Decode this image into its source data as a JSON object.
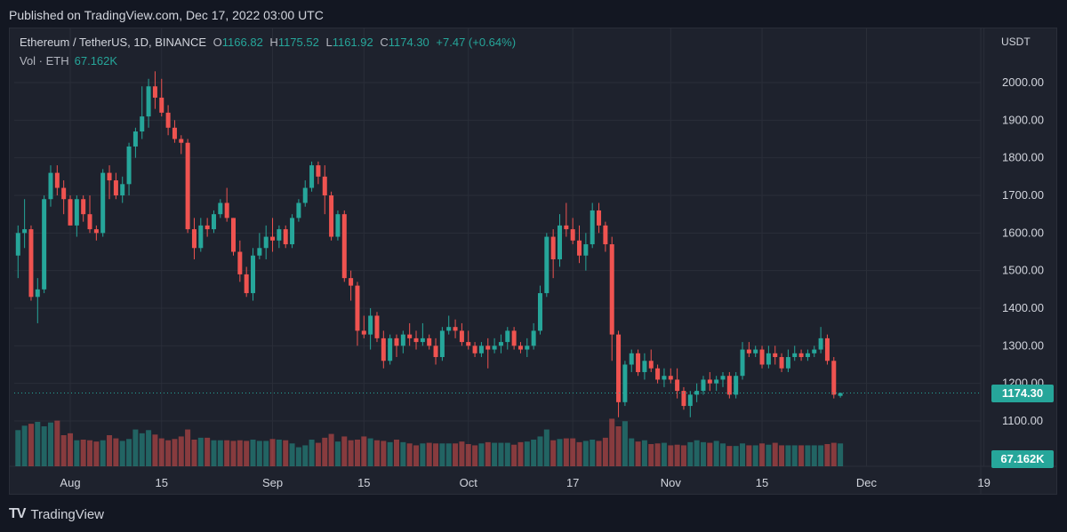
{
  "caption": "Published on TradingView.com, Dec 17, 2022 03:00 UTC",
  "brand": {
    "name": "TradingView",
    "logo_icon": "tradingview-logo-icon"
  },
  "legend": {
    "symbol": "Ethereum / TetherUS, 1D, BINANCE",
    "o_label": "O",
    "o": "1166.82",
    "h_label": "H",
    "h": "1175.52",
    "l_label": "L",
    "l": "1161.92",
    "c_label": "C",
    "c": "1174.30",
    "change": "+7.47 (+0.64%)",
    "vol_label": "Vol · ETH",
    "vol_value": "67.162K"
  },
  "price_axis": {
    "currency": "USDT"
  },
  "last_price_badge": "1174.30",
  "last_volume_badge": "67.162K",
  "colors": {
    "up": "#26a69a",
    "down": "#ef5350",
    "background": "#1e222d",
    "grid": "#2a2e39"
  },
  "chart_data": {
    "type": "candlestick",
    "y_ticks": [
      "1100.00",
      "1200.00",
      "1300.00",
      "1400.00",
      "1500.00",
      "1600.00",
      "1700.00",
      "1800.00",
      "1900.00",
      "2000.00"
    ],
    "ylim": [
      1010,
      2090
    ],
    "x_ticks": [
      {
        "label": "Aug",
        "day": 0
      },
      {
        "label": "15",
        "day": 14
      },
      {
        "label": "Sep",
        "day": 31
      },
      {
        "label": "15",
        "day": 45
      },
      {
        "label": "Oct",
        "day": 61
      },
      {
        "label": "17",
        "day": 77
      },
      {
        "label": "Nov",
        "day": 92
      },
      {
        "label": "15",
        "day": 106
      },
      {
        "label": "Dec",
        "day": 122
      },
      {
        "label": "19",
        "day": 140
      }
    ],
    "start_day": -9,
    "candles": [
      [
        1570,
        1610,
        1520,
        1540
      ],
      [
        1540,
        1620,
        1480,
        1600
      ],
      [
        1600,
        1690,
        1560,
        1610
      ],
      [
        1610,
        1620,
        1420,
        1430
      ],
      [
        1430,
        1480,
        1360,
        1450
      ],
      [
        1450,
        1700,
        1440,
        1690
      ],
      [
        1690,
        1780,
        1670,
        1760
      ],
      [
        1760,
        1780,
        1700,
        1720
      ],
      [
        1720,
        1740,
        1650,
        1690
      ],
      [
        1690,
        1700,
        1620,
        1620
      ],
      [
        1620,
        1700,
        1590,
        1690
      ],
      [
        1690,
        1700,
        1630,
        1650
      ],
      [
        1650,
        1700,
        1600,
        1610
      ],
      [
        1610,
        1620,
        1580,
        1600
      ],
      [
        1600,
        1770,
        1590,
        1760
      ],
      [
        1760,
        1780,
        1690,
        1740
      ],
      [
        1740,
        1760,
        1690,
        1700
      ],
      [
        1700,
        1750,
        1680,
        1730
      ],
      [
        1730,
        1840,
        1700,
        1830
      ],
      [
        1830,
        1880,
        1800,
        1870
      ],
      [
        1870,
        1990,
        1850,
        1910
      ],
      [
        1910,
        2010,
        1880,
        1990
      ],
      [
        1990,
        2030,
        1930,
        1960
      ],
      [
        1960,
        2010,
        1910,
        1920
      ],
      [
        1920,
        1940,
        1860,
        1880
      ],
      [
        1880,
        1900,
        1840,
        1850
      ],
      [
        1850,
        1860,
        1810,
        1840
      ],
      [
        1840,
        1850,
        1600,
        1610
      ],
      [
        1610,
        1640,
        1530,
        1560
      ],
      [
        1560,
        1640,
        1550,
        1620
      ],
      [
        1620,
        1640,
        1590,
        1610
      ],
      [
        1610,
        1660,
        1600,
        1650
      ],
      [
        1650,
        1690,
        1640,
        1680
      ],
      [
        1680,
        1720,
        1630,
        1640
      ],
      [
        1640,
        1640,
        1540,
        1550
      ],
      [
        1550,
        1580,
        1470,
        1490
      ],
      [
        1490,
        1510,
        1430,
        1440
      ],
      [
        1440,
        1560,
        1420,
        1540
      ],
      [
        1540,
        1600,
        1530,
        1560
      ],
      [
        1560,
        1620,
        1530,
        1590
      ],
      [
        1590,
        1640,
        1550,
        1580
      ],
      [
        1580,
        1620,
        1560,
        1610
      ],
      [
        1610,
        1620,
        1560,
        1570
      ],
      [
        1570,
        1650,
        1560,
        1640
      ],
      [
        1640,
        1690,
        1630,
        1680
      ],
      [
        1680,
        1740,
        1670,
        1720
      ],
      [
        1720,
        1790,
        1710,
        1780
      ],
      [
        1780,
        1790,
        1730,
        1750
      ],
      [
        1750,
        1780,
        1650,
        1700
      ],
      [
        1700,
        1710,
        1580,
        1590
      ],
      [
        1590,
        1660,
        1580,
        1650
      ],
      [
        1650,
        1660,
        1470,
        1480
      ],
      [
        1480,
        1500,
        1420,
        1460
      ],
      [
        1460,
        1470,
        1300,
        1340
      ],
      [
        1340,
        1380,
        1320,
        1330
      ],
      [
        1330,
        1400,
        1290,
        1380
      ],
      [
        1380,
        1390,
        1310,
        1320
      ],
      [
        1320,
        1340,
        1240,
        1260
      ],
      [
        1260,
        1330,
        1250,
        1320
      ],
      [
        1320,
        1330,
        1270,
        1300
      ],
      [
        1300,
        1340,
        1280,
        1330
      ],
      [
        1330,
        1360,
        1300,
        1320
      ],
      [
        1320,
        1340,
        1290,
        1310
      ],
      [
        1310,
        1360,
        1300,
        1320
      ],
      [
        1320,
        1330,
        1290,
        1300
      ],
      [
        1300,
        1320,
        1250,
        1270
      ],
      [
        1270,
        1350,
        1260,
        1340
      ],
      [
        1340,
        1380,
        1330,
        1350
      ],
      [
        1350,
        1370,
        1320,
        1340
      ],
      [
        1340,
        1360,
        1300,
        1310
      ],
      [
        1310,
        1340,
        1290,
        1300
      ],
      [
        1300,
        1310,
        1270,
        1280
      ],
      [
        1280,
        1310,
        1270,
        1300
      ],
      [
        1300,
        1320,
        1240,
        1290
      ],
      [
        1290,
        1320,
        1280,
        1300
      ],
      [
        1300,
        1330,
        1280,
        1310
      ],
      [
        1310,
        1350,
        1290,
        1340
      ],
      [
        1340,
        1350,
        1290,
        1300
      ],
      [
        1300,
        1310,
        1280,
        1290
      ],
      [
        1290,
        1320,
        1270,
        1300
      ],
      [
        1300,
        1360,
        1290,
        1340
      ],
      [
        1340,
        1460,
        1330,
        1440
      ],
      [
        1440,
        1600,
        1430,
        1590
      ],
      [
        1590,
        1610,
        1480,
        1530
      ],
      [
        1530,
        1650,
        1510,
        1620
      ],
      [
        1620,
        1680,
        1590,
        1610
      ],
      [
        1610,
        1640,
        1570,
        1580
      ],
      [
        1580,
        1620,
        1520,
        1540
      ],
      [
        1540,
        1600,
        1500,
        1570
      ],
      [
        1570,
        1680,
        1560,
        1660
      ],
      [
        1660,
        1680,
        1600,
        1620
      ],
      [
        1620,
        1630,
        1550,
        1570
      ],
      [
        1570,
        1590,
        1260,
        1330
      ],
      [
        1330,
        1340,
        1110,
        1150
      ],
      [
        1150,
        1260,
        1140,
        1250
      ],
      [
        1250,
        1290,
        1230,
        1280
      ],
      [
        1280,
        1290,
        1220,
        1230
      ],
      [
        1230,
        1280,
        1210,
        1260
      ],
      [
        1260,
        1290,
        1230,
        1240
      ],
      [
        1240,
        1250,
        1200,
        1210
      ],
      [
        1210,
        1240,
        1190,
        1220
      ],
      [
        1220,
        1240,
        1200,
        1210
      ],
      [
        1210,
        1240,
        1160,
        1180
      ],
      [
        1180,
        1190,
        1130,
        1140
      ],
      [
        1140,
        1180,
        1110,
        1170
      ],
      [
        1170,
        1200,
        1150,
        1180
      ],
      [
        1180,
        1220,
        1170,
        1210
      ],
      [
        1210,
        1230,
        1180,
        1200
      ],
      [
        1200,
        1220,
        1180,
        1210
      ],
      [
        1210,
        1230,
        1190,
        1220
      ],
      [
        1220,
        1230,
        1160,
        1170
      ],
      [
        1170,
        1230,
        1160,
        1220
      ],
      [
        1220,
        1310,
        1210,
        1290
      ],
      [
        1290,
        1310,
        1270,
        1280
      ],
      [
        1280,
        1300,
        1270,
        1290
      ],
      [
        1290,
        1300,
        1240,
        1250
      ],
      [
        1250,
        1300,
        1240,
        1280
      ],
      [
        1280,
        1300,
        1250,
        1270
      ],
      [
        1270,
        1280,
        1230,
        1240
      ],
      [
        1240,
        1290,
        1230,
        1270
      ],
      [
        1270,
        1300,
        1260,
        1280
      ],
      [
        1280,
        1290,
        1260,
        1270
      ],
      [
        1270,
        1290,
        1260,
        1280
      ],
      [
        1280,
        1300,
        1270,
        1290
      ],
      [
        1290,
        1350,
        1280,
        1320
      ],
      [
        1320,
        1330,
        1250,
        1260
      ],
      [
        1260,
        1270,
        1160,
        1170
      ],
      [
        1166.82,
        1175.52,
        1161.92,
        1174.3
      ]
    ],
    "volumes": [
      63,
      57,
      64,
      67,
      70,
      63,
      69,
      72,
      49,
      52,
      41,
      42,
      41,
      39,
      41,
      49,
      44,
      40,
      43,
      58,
      52,
      57,
      50,
      44,
      41,
      43,
      47,
      58,
      42,
      45,
      45,
      41,
      41,
      41,
      40,
      41,
      40,
      42,
      40,
      40,
      43,
      42,
      41,
      36,
      30,
      33,
      42,
      37,
      45,
      51,
      39,
      47,
      41,
      42,
      47,
      44,
      41,
      40,
      38,
      42,
      38,
      36,
      33,
      36,
      37,
      36,
      36,
      36,
      36,
      39,
      35,
      33,
      36,
      38,
      37,
      37,
      37,
      34,
      38,
      39,
      42,
      47,
      58,
      41,
      43,
      44,
      44,
      38,
      40,
      42,
      40,
      45,
      75,
      63,
      71,
      44,
      39,
      41,
      35,
      36,
      37,
      33,
      34,
      33,
      38,
      41,
      38,
      37,
      40,
      36,
      32,
      32,
      36,
      33,
      33,
      36,
      34,
      37,
      33,
      33,
      33,
      33,
      33,
      33,
      33,
      35,
      37,
      36,
      37,
      39,
      23
    ],
    "vol_max": 105,
    "last_price": 1174.3
  }
}
